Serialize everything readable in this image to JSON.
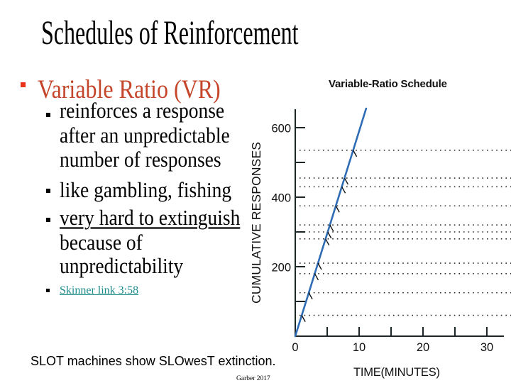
{
  "slide": {
    "title": "Schedules of Reinforcement",
    "bullets": [
      {
        "label": "Variable Ratio (VR)",
        "sub_bullets": [
          {
            "lines": [
              "reinforces a response",
              "after an unpredictable",
              "number of responses"
            ]
          },
          {
            "lines": [
              "like gambling, fishing"
            ]
          },
          {
            "lines": [
              "very hard to extinguish",
              "because of",
              "unpredictability"
            ],
            "underlined_line": 0
          }
        ],
        "link": {
          "label": "Skinner link 3:58"
        }
      }
    ],
    "footer_note": "SLOT machines show SLOwesT extinction.",
    "credit": "Garber 2017"
  },
  "colors": {
    "heading": "#c4452a",
    "heading_bullet": "#e8341c",
    "link": "#1f8c8c",
    "chart_line": "#2e6cb5",
    "axis": "#1c2626"
  },
  "chart_data": {
    "type": "line",
    "title": "Variable-Ratio Schedule",
    "xlabel": "TIME(MINUTES)",
    "ylabel": "CUMULATIVE RESPONSES",
    "xlim": [
      0,
      32.7
    ],
    "ylim": [
      0,
      655
    ],
    "x_ticks": [
      0,
      5,
      10,
      15,
      20,
      25,
      30
    ],
    "x_tick_labels": [
      "0",
      "10",
      "20",
      "30"
    ],
    "x_tick_label_values": [
      0,
      10,
      20,
      30
    ],
    "y_ticks": [
      100,
      200,
      300,
      400,
      500,
      600
    ],
    "y_tick_labels": [
      "200",
      "400",
      "600"
    ],
    "y_tick_label_values": [
      200,
      400,
      600
    ],
    "series": [
      {
        "name": "Cumulative responses",
        "x": [
          0,
          11.1
        ],
        "y": [
          0,
          655
        ],
        "color": "#2e6cb5"
      }
    ],
    "reinforcement_marks": [
      60,
      125,
      180,
      210,
      280,
      300,
      320,
      375,
      430,
      455,
      535
    ],
    "grid": "dotted horizontal lines at each reinforcement",
    "legend": null
  }
}
